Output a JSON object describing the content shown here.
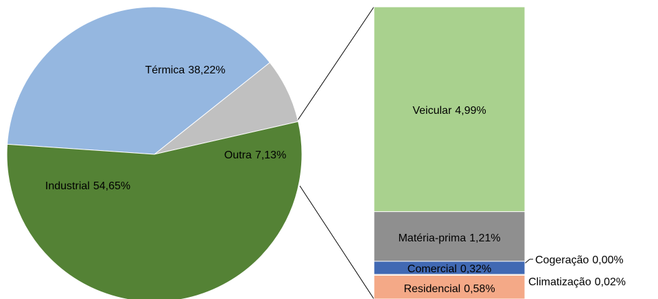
{
  "chart_data": [
    {
      "type": "pie",
      "categories": [
        "Outra",
        "Térmica",
        "Industrial"
      ],
      "values": [
        7.13,
        38.22,
        54.65
      ],
      "value_labels": [
        "7,13%",
        "38,22%",
        "54,65%"
      ],
      "colors": [
        "#c0c0c0",
        "#95b7e0",
        "#548235"
      ]
    },
    {
      "type": "stacked-bar",
      "categories": [
        "Residencial",
        "Climatização",
        "Comercial",
        "Cogeração",
        "Matéria-prima",
        "Veicular"
      ],
      "values": [
        0.58,
        0.02,
        0.32,
        0.0,
        1.21,
        4.99
      ],
      "value_labels": [
        "0,58%",
        "0,02%",
        "0,32%",
        "0,00%",
        "1,21%",
        "4,99%"
      ],
      "colors": [
        "#f4a987",
        "#ed7d31",
        "#4169b3",
        "#ffc000",
        "#8f8f8f",
        "#a9d18e"
      ]
    }
  ]
}
